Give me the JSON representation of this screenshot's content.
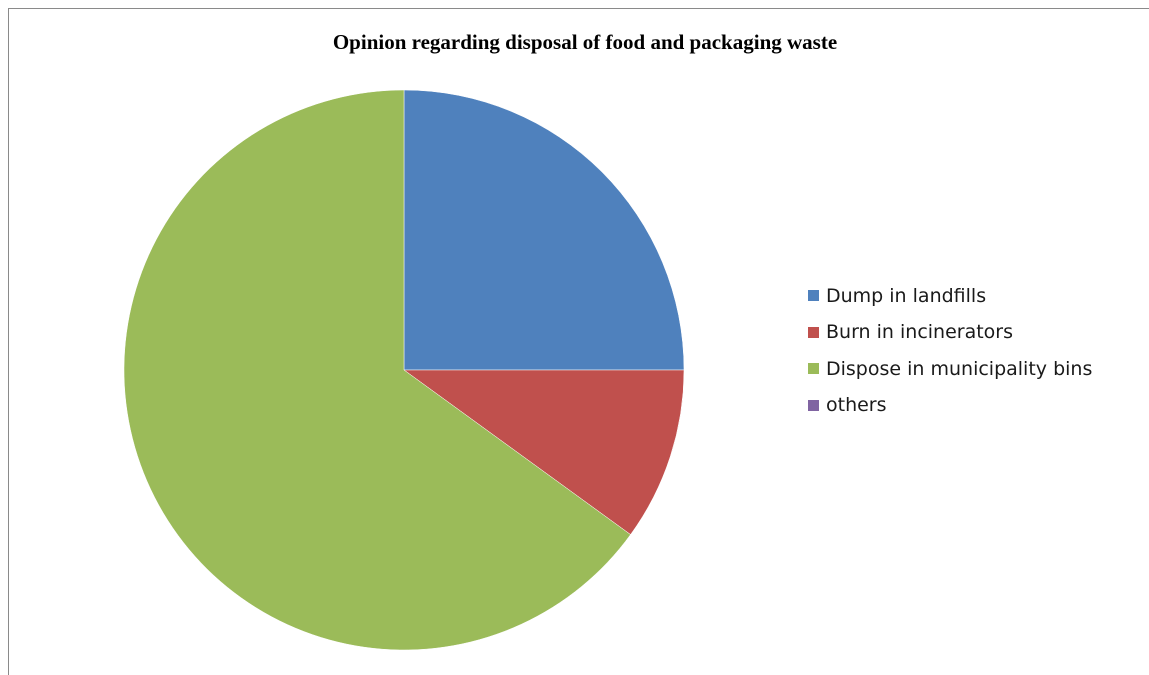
{
  "chart_data": {
    "type": "pie",
    "title": "Opinion regarding disposal of food and packaging waste",
    "categories": [
      "Dump in landfills",
      "Burn in incinerators",
      "Dispose in municipality bins",
      "others"
    ],
    "values": [
      25,
      10,
      65,
      0
    ],
    "unit": "",
    "colors": [
      "#4F81BD",
      "#C0504D",
      "#9BBB59",
      "#8064A2"
    ],
    "legend": "right",
    "start_angle": "12 o'clock, clockwise"
  }
}
